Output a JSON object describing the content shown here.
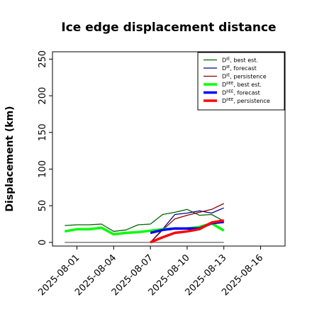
{
  "chart_data": {
    "type": "line",
    "title": "Ice edge displacement distance",
    "xlabel": "",
    "ylabel": "Displacement (km)",
    "xlim": [
      "2025-07-30",
      "2025-08-18"
    ],
    "ylim": [
      -5,
      260
    ],
    "yticks": [
      0,
      50,
      100,
      150,
      200,
      250
    ],
    "xticks": [
      {
        "date": "2025-08-01",
        "label": "2025-08-01",
        "color": "#000000"
      },
      {
        "date": "2025-08-04",
        "label": "2025-08-04",
        "color": "#000000"
      },
      {
        "date": "2025-08-07",
        "label": "2025-08-07",
        "color": "#228b22"
      },
      {
        "date": "2025-08-10",
        "label": "2025-08-10",
        "color": "#000000"
      },
      {
        "date": "2025-08-13",
        "label": "2025-08-13",
        "color": "#000000"
      },
      {
        "date": "2025-08-16",
        "label": "2025-08-16",
        "color": "#000000"
      }
    ],
    "grid": false,
    "legend_position": "top-right",
    "reference_line": {
      "y": 0,
      "x_start": "2025-07-31",
      "x_end": "2025-08-13",
      "color": "#555555"
    },
    "series": [
      {
        "name": "D^IE, best est.",
        "label_base": "D",
        "label_sup": "IE",
        "label_rest": ", best est.",
        "color": "#006400",
        "width": 1.3,
        "x": [
          "2025-07-31",
          "2025-08-01",
          "2025-08-02",
          "2025-08-03",
          "2025-08-04",
          "2025-08-05",
          "2025-08-06",
          "2025-08-07",
          "2025-08-08",
          "2025-08-09",
          "2025-08-10",
          "2025-08-11",
          "2025-08-12",
          "2025-08-13"
        ],
        "y": [
          23,
          24,
          24,
          25,
          15,
          17,
          24,
          25,
          38,
          41,
          45,
          37,
          38,
          29
        ]
      },
      {
        "name": "D^IE, forecast",
        "label_base": "D",
        "label_sup": "IE",
        "label_rest": ", forecast",
        "color": "#00008b",
        "width": 1.3,
        "x": [
          "2025-08-07",
          "2025-08-08",
          "2025-08-09",
          "2025-08-10",
          "2025-08-11",
          "2025-08-12",
          "2025-08-13"
        ],
        "y": [
          0,
          18,
          38,
          40,
          43,
          40,
          47
        ]
      },
      {
        "name": "D^IE, persistence",
        "label_base": "D",
        "label_sup": "IE",
        "label_rest": ", persistence",
        "color": "#8b0000",
        "width": 1.3,
        "x": [
          "2025-08-07",
          "2025-08-08",
          "2025-08-09",
          "2025-08-10",
          "2025-08-11",
          "2025-08-12",
          "2025-08-13"
        ],
        "y": [
          0,
          17,
          32,
          37,
          41,
          45,
          53
        ]
      },
      {
        "name": "D^IIEE, best est.",
        "label_base": "D",
        "label_sup": "IIEE",
        "label_rest": ", best est.",
        "color": "#00ff00",
        "width": 3.5,
        "x": [
          "2025-07-31",
          "2025-08-01",
          "2025-08-02",
          "2025-08-03",
          "2025-08-04",
          "2025-08-05",
          "2025-08-06",
          "2025-08-07",
          "2025-08-08",
          "2025-08-09",
          "2025-08-10",
          "2025-08-11",
          "2025-08-12",
          "2025-08-13"
        ],
        "y": [
          15,
          18,
          18,
          20,
          11,
          13,
          14,
          16,
          18,
          19,
          19,
          21,
          26,
          16
        ]
      },
      {
        "name": "D^IIEE, forecast",
        "label_base": "D",
        "label_sup": "IIEE",
        "label_rest": ", forecast",
        "color": "#0000ff",
        "width": 3.5,
        "x": [
          "2025-08-07",
          "2025-08-08",
          "2025-08-09",
          "2025-08-10",
          "2025-08-11",
          "2025-08-12",
          "2025-08-13"
        ],
        "y": [
          13,
          17,
          19,
          19,
          19,
          26,
          28
        ]
      },
      {
        "name": "D^IIEE, persistence",
        "label_base": "D",
        "label_sup": "IIEE",
        "label_rest": ", persistence",
        "color": "#ff0000",
        "width": 3.5,
        "x": [
          "2025-08-07",
          "2025-08-08",
          "2025-08-09",
          "2025-08-10",
          "2025-08-11",
          "2025-08-12",
          "2025-08-13"
        ],
        "y": [
          0,
          7,
          13,
          15,
          18,
          27,
          30
        ]
      }
    ]
  }
}
